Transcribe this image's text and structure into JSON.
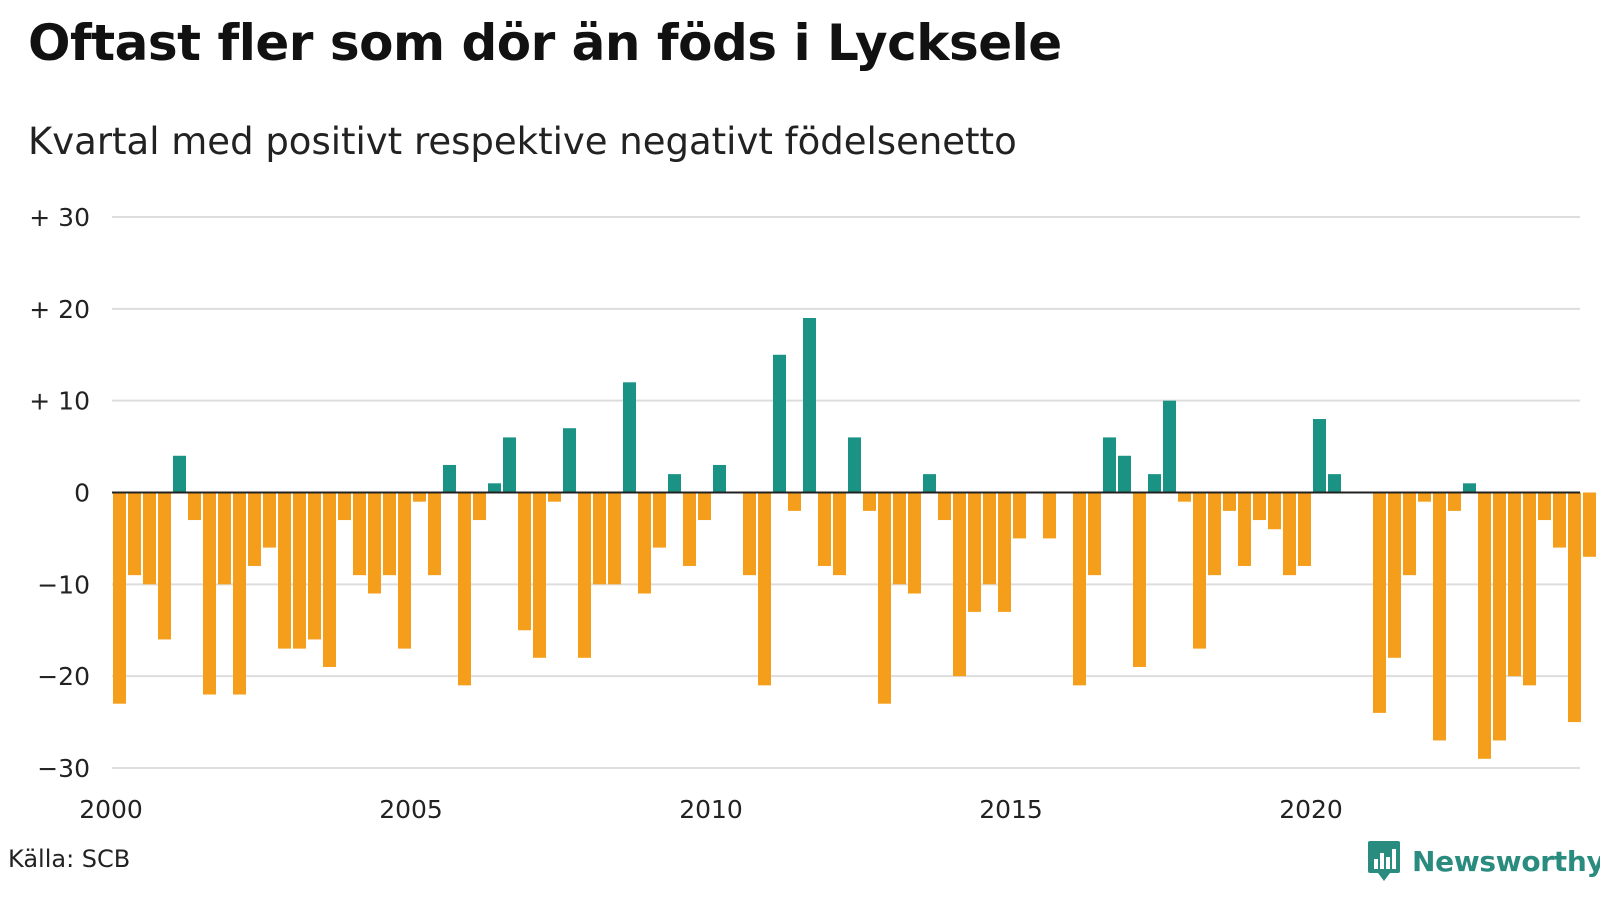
{
  "header": {
    "title": "Oftast fler som dör än föds i Lycksele",
    "subtitle": "Kvartal med positivt respektive negativt födelsenetto"
  },
  "footer": {
    "source": "Källa: SCB",
    "brand": "Newsworthy",
    "brand_icon": "bar-chart-icon"
  },
  "chart_data": {
    "type": "bar",
    "title": "Oftast fler som dör än föds i Lycksele",
    "subtitle": "Kvartal med positivt respektive negativt födelsenetto",
    "xlabel": "",
    "ylabel": "",
    "x_start": 2000,
    "x_ticks": [
      2000,
      2005,
      2010,
      2015,
      2020
    ],
    "y_ticks": [
      30,
      20,
      10,
      0,
      -10,
      -20,
      -30
    ],
    "y_tick_labels": [
      "+ 30",
      "+ 20",
      "+ 10",
      "0",
      "−10",
      "−20",
      "−30"
    ],
    "ylim": [
      -30,
      30
    ],
    "grid": true,
    "colors": {
      "positive": "#1a9385",
      "negative": "#f59e1c",
      "zero_line": "#222222",
      "grid": "#dddddd"
    },
    "values": [
      -23,
      -9,
      -10,
      -16,
      4,
      -3,
      -22,
      -10,
      -22,
      -8,
      -6,
      -17,
      -17,
      -16,
      -19,
      -3,
      -9,
      -11,
      -9,
      -17,
      -1,
      -9,
      3,
      -21,
      -3,
      1,
      6,
      -15,
      -18,
      -1,
      7,
      -18,
      -10,
      -10,
      12,
      -11,
      -6,
      2,
      -8,
      -3,
      3,
      0,
      -9,
      -21,
      15,
      -2,
      19,
      -8,
      -9,
      6,
      -2,
      -23,
      -10,
      -11,
      2,
      -3,
      -20,
      -13,
      -10,
      -13,
      -5,
      0,
      -5,
      0,
      -21,
      -9,
      6,
      4,
      -19,
      2,
      10,
      -1,
      -17,
      -9,
      -2,
      -8,
      -3,
      -4,
      -9,
      -8,
      8,
      2,
      0,
      0,
      -24,
      -18,
      -9,
      -1,
      -27,
      -2,
      1,
      -29,
      -27,
      -20,
      -21,
      -3,
      -6,
      -25,
      -7
    ]
  }
}
